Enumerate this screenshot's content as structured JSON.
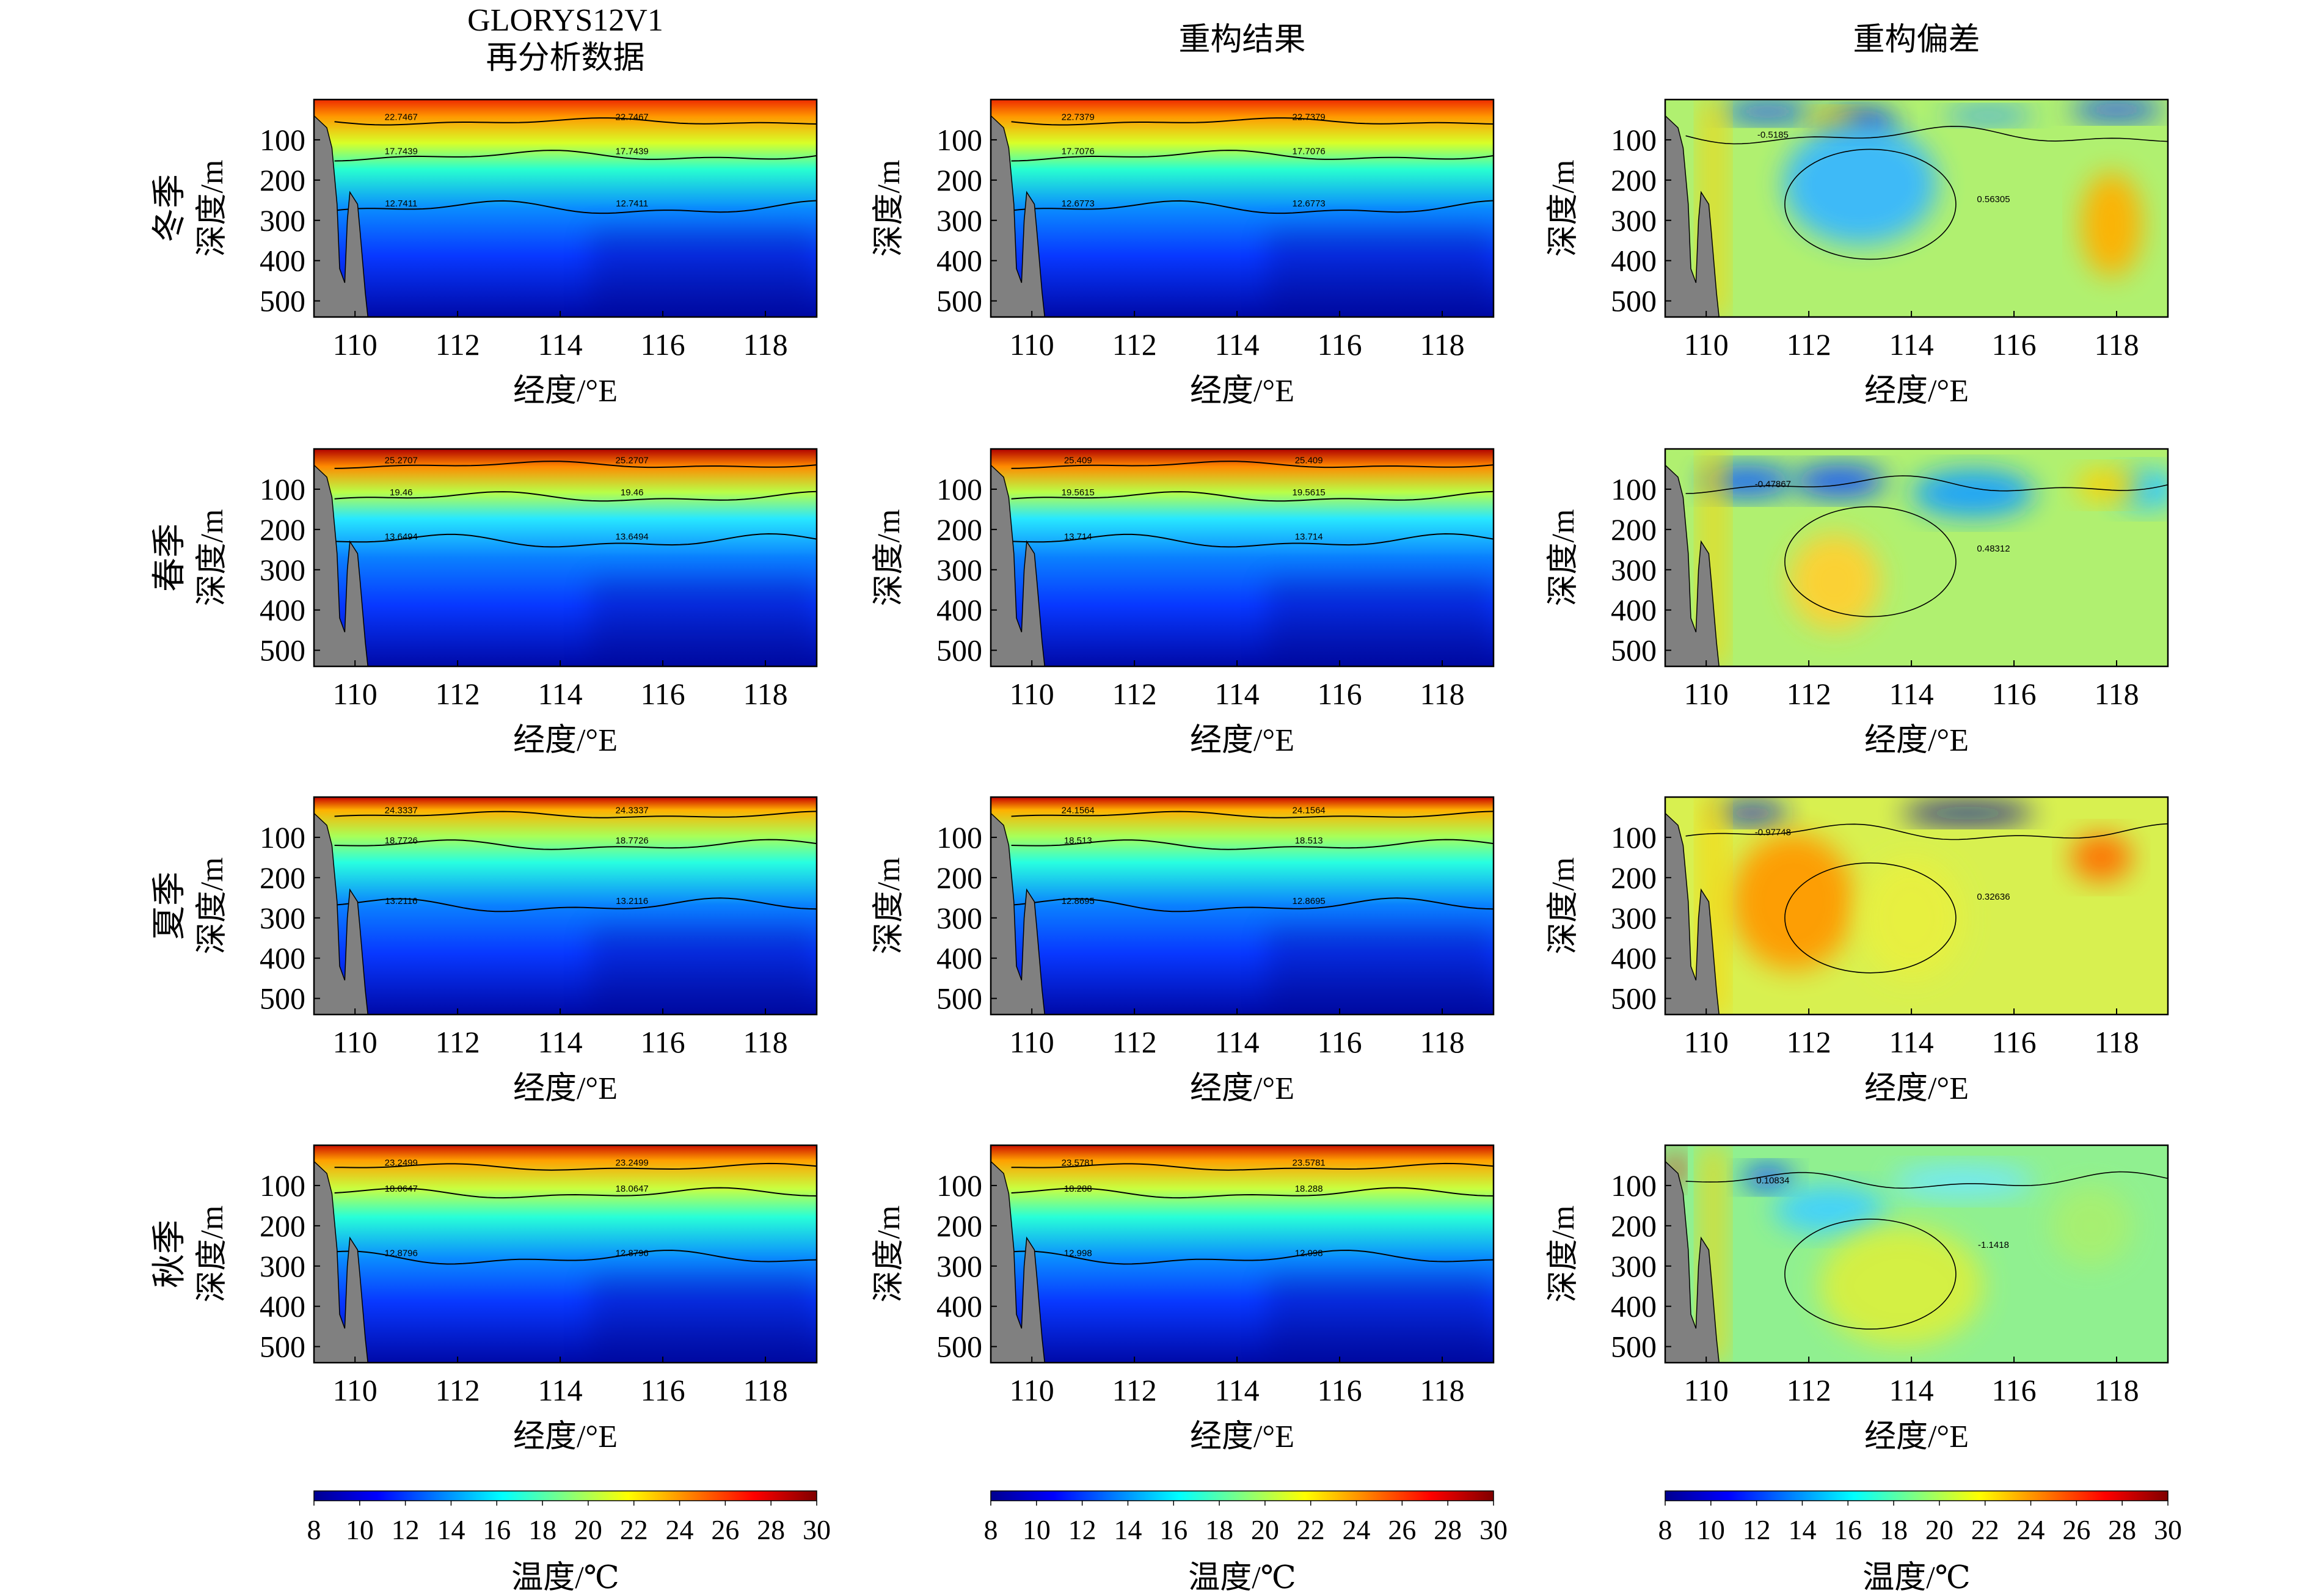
{
  "columns": [
    {
      "title_lines": [
        "GLORYS12V1",
        "再分析数据"
      ]
    },
    {
      "title_lines": [
        "重构结果"
      ]
    },
    {
      "title_lines": [
        "重构偏差"
      ]
    }
  ],
  "seasons": [
    "冬季",
    "春季",
    "夏季",
    "秋季"
  ],
  "ylabel": "深度/m",
  "xlabel": "经度/°E",
  "x_ticks": [
    "110",
    "112",
    "114",
    "116",
    "118"
  ],
  "y_ticks": [
    "100",
    "200",
    "300",
    "400",
    "500"
  ],
  "colorbar": {
    "label": "温度/℃",
    "ticks": [
      "8",
      "10",
      "12",
      "14",
      "16",
      "18",
      "20",
      "22",
      "24",
      "26",
      "28",
      "30"
    ],
    "range": [
      8,
      30
    ]
  },
  "chart_data": [
    {
      "type": "heatmap",
      "column": "GLORYS12V1 再分析数据",
      "season": "冬季",
      "xlim": [
        109.2,
        119
      ],
      "ylim": [
        0,
        540
      ],
      "contours": [
        "22.7467",
        "17.7439",
        "12.7411"
      ]
    },
    {
      "type": "heatmap",
      "column": "重构结果",
      "season": "冬季",
      "xlim": [
        109.2,
        119
      ],
      "ylim": [
        0,
        540
      ],
      "contours": [
        "22.7379",
        "17.7076",
        "12.6773"
      ]
    },
    {
      "type": "heatmap",
      "column": "重构偏差",
      "season": "冬季",
      "xlim": [
        109.2,
        119
      ],
      "ylim": [
        0,
        540
      ],
      "contours": [
        "-0.5185",
        "0.56305"
      ]
    },
    {
      "type": "heatmap",
      "column": "GLORYS12V1 再分析数据",
      "season": "春季",
      "xlim": [
        109.2,
        119
      ],
      "ylim": [
        0,
        540
      ],
      "contours": [
        "25.2707",
        "19.46",
        "13.6494"
      ]
    },
    {
      "type": "heatmap",
      "column": "重构结果",
      "season": "春季",
      "xlim": [
        109.2,
        119
      ],
      "ylim": [
        0,
        540
      ],
      "contours": [
        "25.409",
        "19.5615",
        "13.714"
      ]
    },
    {
      "type": "heatmap",
      "column": "重构偏差",
      "season": "春季",
      "xlim": [
        109.2,
        119
      ],
      "ylim": [
        0,
        540
      ],
      "contours": [
        "-0.47867",
        "0.48312"
      ]
    },
    {
      "type": "heatmap",
      "column": "GLORYS12V1 再分析数据",
      "season": "夏季",
      "xlim": [
        109.2,
        119
      ],
      "ylim": [
        0,
        540
      ],
      "contours": [
        "24.3337",
        "18.7726",
        "13.2116"
      ]
    },
    {
      "type": "heatmap",
      "column": "重构结果",
      "season": "夏季",
      "xlim": [
        109.2,
        119
      ],
      "ylim": [
        0,
        540
      ],
      "contours": [
        "24.1564",
        "18.513",
        "12.8695"
      ]
    },
    {
      "type": "heatmap",
      "column": "重构偏差",
      "season": "夏季",
      "xlim": [
        109.2,
        119
      ],
      "ylim": [
        0,
        540
      ],
      "contours": [
        "-0.97748",
        "0.32636"
      ]
    },
    {
      "type": "heatmap",
      "column": "GLORYS12V1 再分析数据",
      "season": "秋季",
      "xlim": [
        109.2,
        119
      ],
      "ylim": [
        0,
        540
      ],
      "contours": [
        "23.2499",
        "18.0647",
        "12.8796"
      ]
    },
    {
      "type": "heatmap",
      "column": "重构结果",
      "season": "秋季",
      "xlim": [
        109.2,
        119
      ],
      "ylim": [
        0,
        540
      ],
      "contours": [
        "23.5781",
        "18.288",
        "12.998"
      ]
    },
    {
      "type": "heatmap",
      "column": "重构偏差",
      "season": "秋季",
      "xlim": [
        109.2,
        119
      ],
      "ylim": [
        0,
        540
      ],
      "contours": [
        "0.10834",
        "-1.1418"
      ]
    }
  ],
  "colors": {
    "land": "#808080",
    "jet": [
      "#00008f",
      "#0000ff",
      "#0080ff",
      "#00ffff",
      "#80ff80",
      "#ffff00",
      "#ff8000",
      "#ff0000",
      "#800000"
    ]
  }
}
